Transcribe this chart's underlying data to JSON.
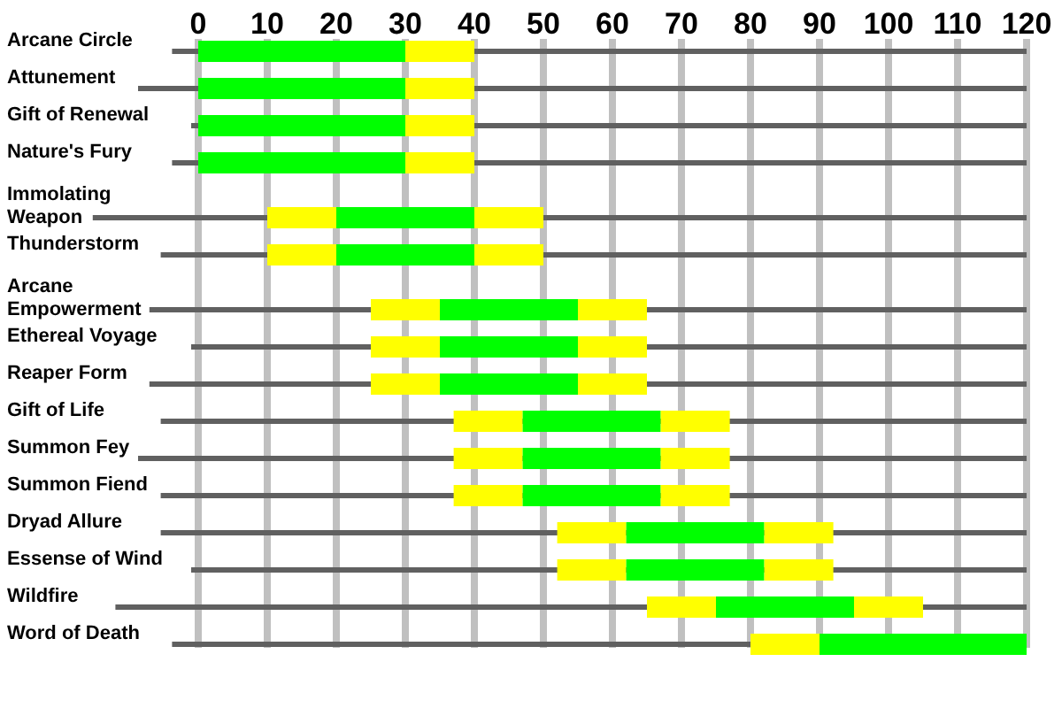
{
  "chart_data": {
    "type": "bar",
    "orientation": "horizontal",
    "categories": [
      "Arcane Circle",
      "Attunement",
      "Gift of Renewal",
      "Nature's Fury",
      "Immolating Weapon",
      "Thunderstorm",
      "Arcane Empowerment",
      "Ethereal Voyage",
      "Reaper Form",
      "Gift of Life",
      "Summon Fey",
      "Summon Fiend",
      "Dryad Allure",
      "Essense of Wind",
      "Wildfire",
      "Word of Death"
    ],
    "series": [
      {
        "color": "#ffff00",
        "base": [
          null,
          null,
          null,
          null,
          10,
          10,
          25,
          25,
          25,
          37,
          37,
          37,
          52,
          52,
          65,
          80
        ],
        "values": [
          null,
          null,
          null,
          null,
          10,
          10,
          10,
          10,
          10,
          10,
          10,
          10,
          10,
          10,
          10,
          10
        ]
      },
      {
        "color": "#00ff00",
        "base": [
          0,
          0,
          0,
          0,
          20,
          20,
          35,
          35,
          35,
          47,
          47,
          47,
          62,
          62,
          75,
          90
        ],
        "values": [
          30,
          30,
          30,
          30,
          20,
          20,
          20,
          20,
          20,
          20,
          20,
          20,
          20,
          20,
          20,
          30
        ]
      },
      {
        "color": "#ffff00",
        "base": [
          30,
          30,
          30,
          30,
          40,
          40,
          55,
          55,
          55,
          67,
          67,
          67,
          82,
          82,
          95,
          null
        ],
        "values": [
          10,
          10,
          10,
          10,
          10,
          10,
          10,
          10,
          10,
          10,
          10,
          10,
          10,
          10,
          10,
          null
        ]
      }
    ],
    "xlim": [
      0,
      120
    ],
    "xticks": [
      0,
      10,
      20,
      30,
      40,
      50,
      60,
      70,
      80,
      90,
      100,
      110,
      120
    ],
    "grid": true
  }
}
